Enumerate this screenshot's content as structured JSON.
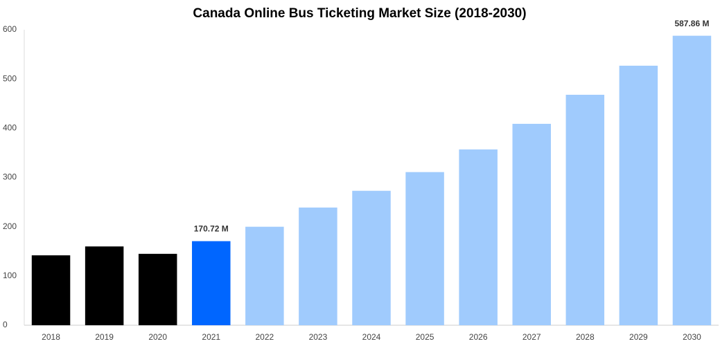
{
  "chart_data": {
    "type": "bar",
    "title": "Canada Online Bus Ticketing Market Size (2018-2030)",
    "categories": [
      "2018",
      "2019",
      "2020",
      "2021",
      "2022",
      "2023",
      "2024",
      "2025",
      "2026",
      "2027",
      "2028",
      "2029",
      "2030"
    ],
    "values": [
      142,
      160,
      145,
      170.72,
      200,
      239,
      273,
      311,
      357,
      409,
      468,
      527,
      587.86
    ],
    "value_labels": [
      null,
      null,
      null,
      "170.72 M",
      null,
      null,
      null,
      null,
      null,
      null,
      null,
      null,
      "587.86 M"
    ],
    "colors": [
      "#000000",
      "#000000",
      "#000000",
      "#0066ff",
      "#a0cbfd",
      "#a0cbfd",
      "#a0cbfd",
      "#a0cbfd",
      "#a0cbfd",
      "#a0cbfd",
      "#a0cbfd",
      "#a0cbfd",
      "#a0cbfd"
    ],
    "ylim": [
      0,
      600
    ],
    "yticks": [
      0,
      100,
      200,
      300,
      400,
      500,
      600
    ],
    "grid": false
  }
}
